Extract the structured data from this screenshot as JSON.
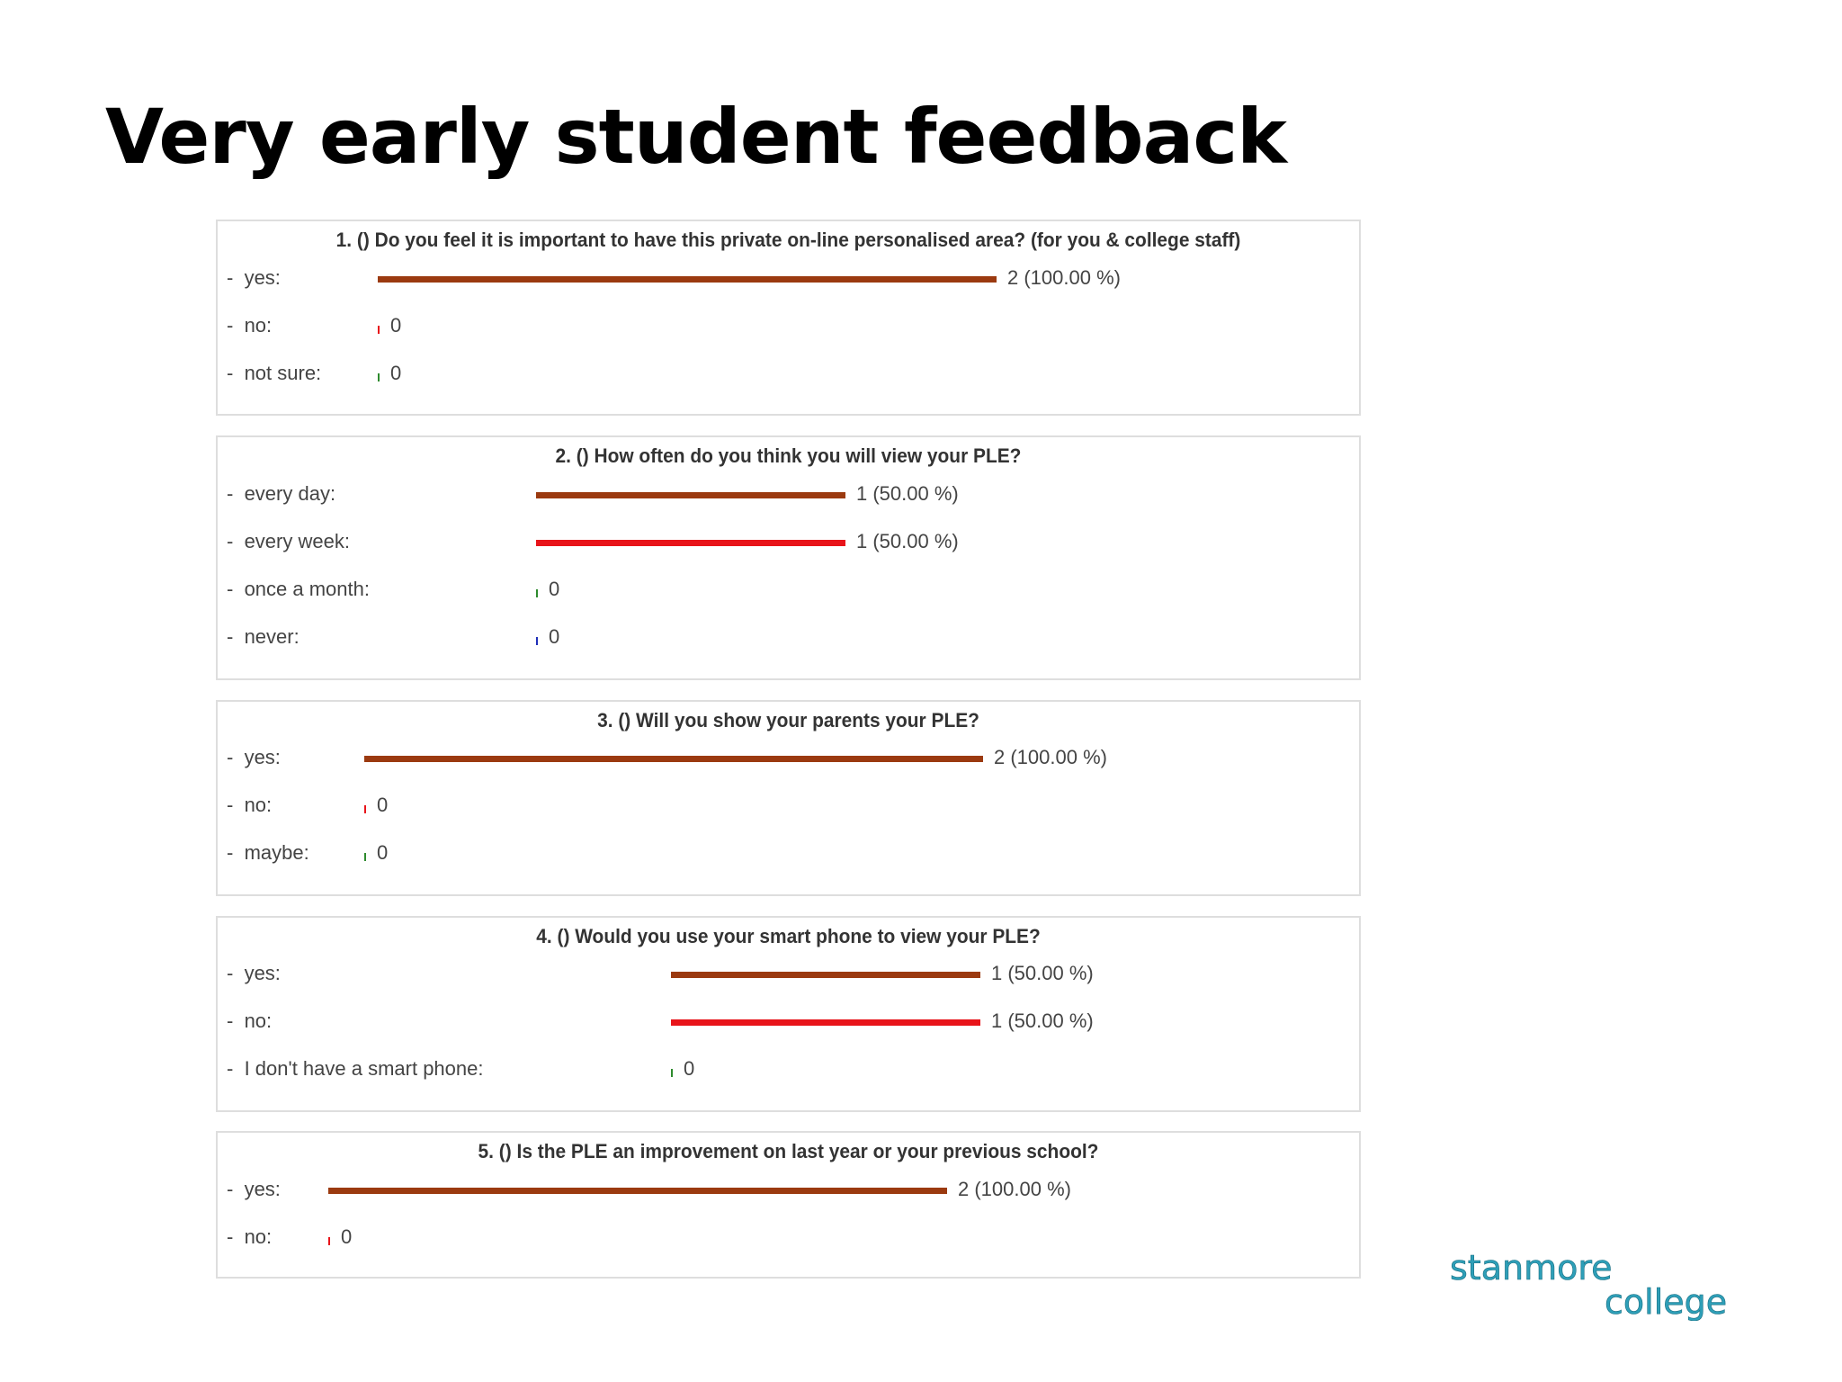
{
  "slide": {
    "title": "Very early student feedback"
  },
  "logo": {
    "line1": "stanmore",
    "line2": "college"
  },
  "chart_data": [
    {
      "type": "bar",
      "title": "1. () Do you feel it is important to have this private on-line personalised area? (for you & college staff)",
      "categories": [
        "yes:",
        "no:",
        "not sure:"
      ],
      "values": [
        2,
        0,
        0
      ],
      "value_labels": [
        "2 (100.00 %)",
        "0",
        "0"
      ],
      "colors": [
        "#9b3a10",
        "#e8141a",
        "#2e8b2e"
      ]
    },
    {
      "type": "bar",
      "title": "2. () How often do you think you will view your PLE?",
      "categories": [
        "every day:",
        "every week:",
        "once a month:",
        "never:"
      ],
      "values": [
        1,
        1,
        0,
        0
      ],
      "value_labels": [
        "1 (50.00 %)",
        "1 (50.00 %)",
        "0",
        "0"
      ],
      "colors": [
        "#9b3a10",
        "#e8141a",
        "#2e8b2e",
        "#1f2fb8"
      ]
    },
    {
      "type": "bar",
      "title": "3. () Will you show your parents your PLE?",
      "categories": [
        "yes:",
        "no:",
        "maybe:"
      ],
      "values": [
        2,
        0,
        0
      ],
      "value_labels": [
        "2 (100.00 %)",
        "0",
        "0"
      ],
      "colors": [
        "#9b3a10",
        "#e8141a",
        "#2e8b2e"
      ]
    },
    {
      "type": "bar",
      "title": "4. () Would you use your smart phone to view your PLE?",
      "categories": [
        "yes:",
        "no:",
        "I don't have a smart phone:"
      ],
      "values": [
        1,
        1,
        0
      ],
      "value_labels": [
        "1 (50.00 %)",
        "1 (50.00 %)",
        "0"
      ],
      "colors": [
        "#9b3a10",
        "#e8141a",
        "#2e8b2e"
      ]
    },
    {
      "type": "bar",
      "title": "5. () Is the PLE an improvement on last year or your previous school?",
      "categories": [
        "yes:",
        "no:"
      ],
      "values": [
        2,
        0
      ],
      "value_labels": [
        "2 (100.00 %)",
        "0"
      ],
      "colors": [
        "#9b3a10",
        "#e8141a"
      ]
    }
  ]
}
